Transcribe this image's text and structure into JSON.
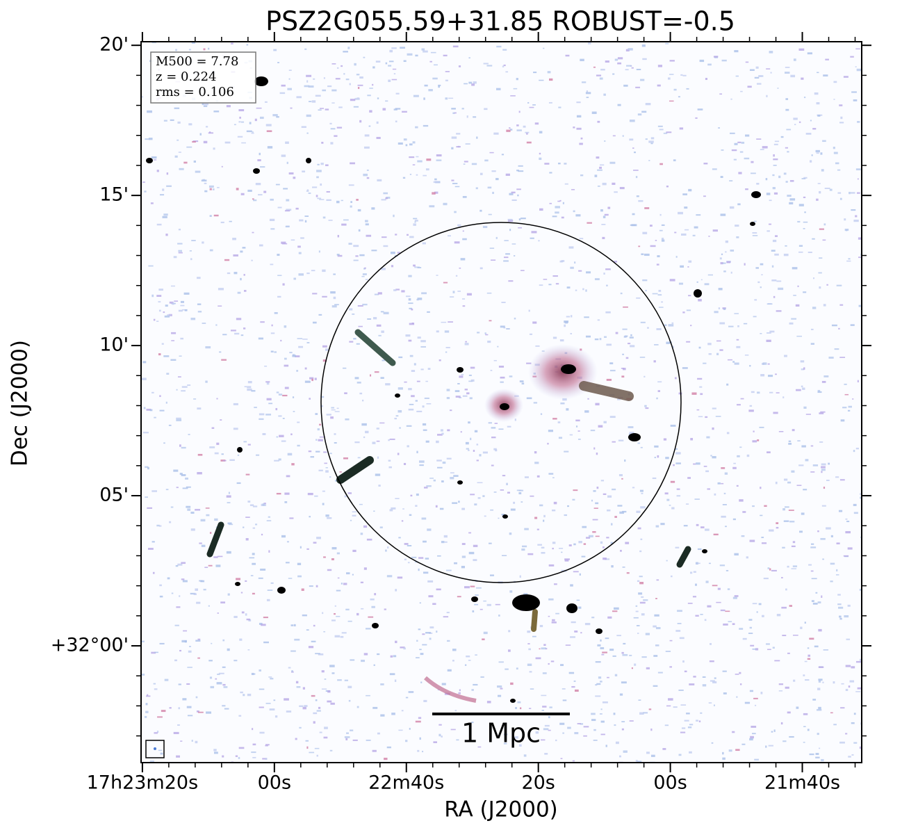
{
  "chart_data": {
    "type": "image",
    "title": "PSZ2G055.59+31.85 ROBUST=-0.5",
    "xlabel": "RA (J2000)",
    "ylabel": "Dec (J2000)",
    "annotations": [
      "M500 = 7.78",
      "z = 0.224",
      "rms = 0.106"
    ],
    "scale_bar": "1 Mpc",
    "xlim": [
      140.2,
      31
    ],
    "xticks": [
      {
        "value": 140,
        "label": "17h23m20s"
      },
      {
        "value": 120,
        "label": "00s"
      },
      {
        "value": 100,
        "label": "22m40s"
      },
      {
        "value": 80,
        "label": "20s"
      },
      {
        "value": 60,
        "label": "00s"
      },
      {
        "value": 40,
        "label": "21m40s"
      }
    ],
    "ylim": [
      -3.89,
      20.12
    ],
    "yticks": [
      {
        "value": 0,
        "label": "+32°00'"
      },
      {
        "value": 5,
        "label": "05'"
      },
      {
        "value": 10,
        "label": "10'"
      },
      {
        "value": 15,
        "label": "15'"
      },
      {
        "value": 20,
        "label": "20'"
      }
    ]
  }
}
